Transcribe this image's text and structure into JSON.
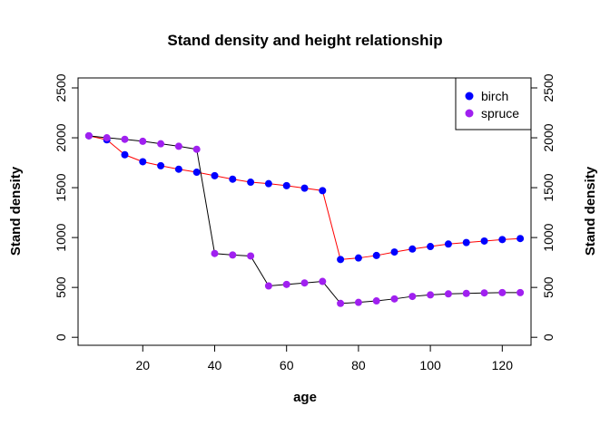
{
  "chart_data": {
    "type": "line",
    "title": "Stand density and height relationship",
    "xlabel": "age",
    "ylabel": "Stand density",
    "ylabel_right": "Stand density",
    "xlim": [
      2,
      128
    ],
    "ylim": [
      -80,
      2600
    ],
    "xticks": [
      20,
      40,
      60,
      80,
      100,
      120
    ],
    "yticks": [
      0,
      500,
      1000,
      1500,
      2000,
      2500
    ],
    "grid": false,
    "legend_position": "top-right",
    "series": [
      {
        "name": "birch",
        "color": "#0000ff",
        "line_color": "#ff0000",
        "x": [
          5,
          10,
          15,
          20,
          25,
          30,
          35,
          40,
          45,
          50,
          55,
          60,
          65,
          70,
          75,
          80,
          85,
          90,
          95,
          100,
          105,
          110,
          115,
          120,
          125
        ],
        "y": [
          2020,
          1980,
          1830,
          1760,
          1720,
          1685,
          1655,
          1620,
          1585,
          1555,
          1540,
          1520,
          1495,
          1470,
          780,
          795,
          820,
          855,
          885,
          910,
          935,
          950,
          965,
          980,
          990
        ]
      },
      {
        "name": "spruce",
        "color": "#a020f0",
        "line_color": "#000000",
        "x": [
          5,
          10,
          15,
          20,
          25,
          30,
          35,
          40,
          45,
          50,
          55,
          60,
          65,
          70,
          75,
          80,
          85,
          90,
          95,
          100,
          105,
          110,
          115,
          120,
          125
        ],
        "y": [
          2020,
          2000,
          1985,
          1965,
          1940,
          1915,
          1885,
          840,
          825,
          815,
          515,
          530,
          545,
          560,
          340,
          350,
          365,
          385,
          410,
          425,
          435,
          440,
          445,
          448,
          448
        ]
      }
    ]
  }
}
